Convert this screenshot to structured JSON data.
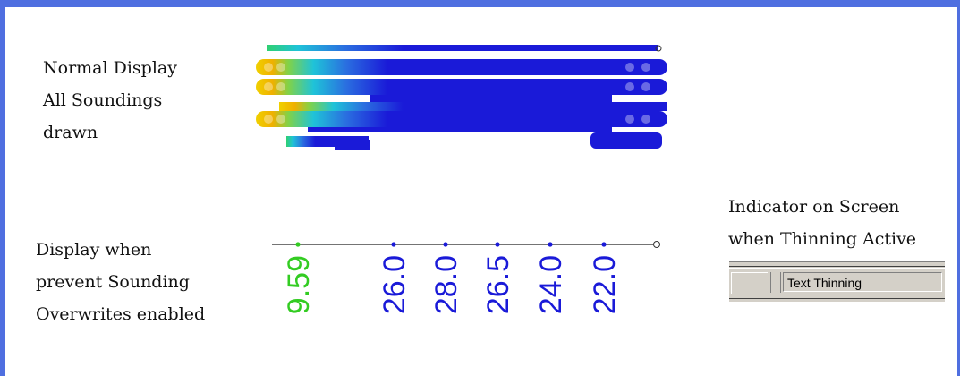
{
  "normal_display": {
    "lines": [
      "Normal Display",
      "All Soundings",
      "drawn"
    ]
  },
  "prevent_overwrites": {
    "lines": [
      "Display when",
      "prevent Sounding",
      "Overwrites enabled"
    ]
  },
  "indicator": {
    "lines": [
      "Indicator on Screen",
      "when Thinning Active"
    ]
  },
  "status_bar": {
    "text": "Text Thinning"
  },
  "soundings": [
    {
      "value": "9.59",
      "color": "#33cc22"
    },
    {
      "value": "26.0",
      "color": "#1a1ad8"
    },
    {
      "value": "28.0",
      "color": "#1a1ad8"
    },
    {
      "value": "26.5",
      "color": "#1a1ad8"
    },
    {
      "value": "24.0",
      "color": "#1a1ad8"
    },
    {
      "value": "22.0",
      "color": "#1a1ad8"
    }
  ],
  "colors": {
    "frame": "#4f6fe0",
    "deep": "#1a1ad8",
    "shallow": "#33cc22"
  }
}
